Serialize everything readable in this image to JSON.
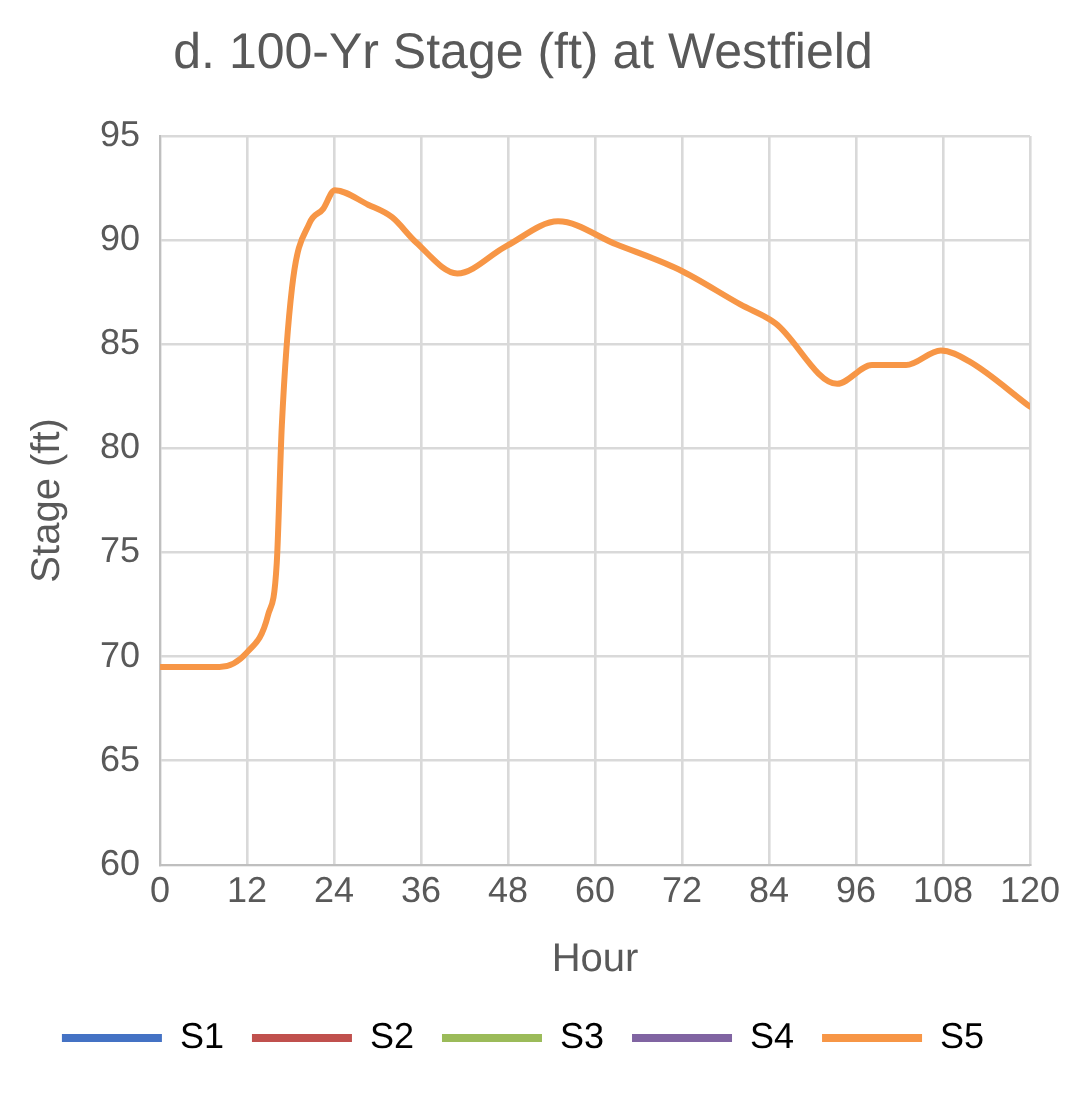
{
  "chart_data": {
    "type": "line",
    "title": "d. 100-Yr Stage (ft) at Westfield",
    "xlabel": "Hour",
    "ylabel": "Stage (ft)",
    "x": [
      0,
      8.2,
      12,
      14.9,
      16.1,
      16.8,
      18.2,
      20.6,
      22.5,
      24.1,
      28.7,
      32,
      35.3,
      41,
      47.7,
      54.9,
      62.9,
      71.5,
      80.1,
      84.9,
      93.4,
      98.2,
      102.9,
      107.7,
      111.5,
      120
    ],
    "series": [
      {
        "name": "S1",
        "color": "#4472c4",
        "values": [
          null,
          null,
          null,
          null,
          null,
          null,
          null,
          null,
          null,
          null,
          null,
          null,
          null,
          null,
          null,
          null,
          null,
          null,
          null,
          null,
          null,
          null,
          null,
          null,
          null,
          null
        ]
      },
      {
        "name": "S2",
        "color": "#c0504d",
        "values": [
          null,
          null,
          null,
          null,
          null,
          null,
          null,
          null,
          null,
          null,
          null,
          null,
          null,
          null,
          null,
          null,
          null,
          null,
          null,
          null,
          null,
          null,
          null,
          null,
          null,
          null
        ]
      },
      {
        "name": "S3",
        "color": "#9bbb59",
        "values": [
          null,
          null,
          null,
          null,
          null,
          null,
          null,
          null,
          null,
          null,
          null,
          null,
          null,
          null,
          null,
          null,
          null,
          null,
          null,
          null,
          null,
          null,
          null,
          null,
          null,
          null
        ]
      },
      {
        "name": "S4",
        "color": "#8064a2",
        "values": [
          null,
          null,
          null,
          null,
          null,
          null,
          null,
          null,
          null,
          null,
          null,
          null,
          null,
          null,
          null,
          null,
          null,
          null,
          null,
          null,
          null,
          null,
          null,
          null,
          null,
          null
        ]
      },
      {
        "name": "S5",
        "color": "#f79646",
        "values": [
          69.5,
          69.5,
          70.2,
          72,
          74.5,
          81.1,
          87.7,
          90.8,
          91.5,
          92.4,
          91.7,
          91.1,
          89.9,
          88.4,
          89.7,
          90.9,
          89.8,
          88.6,
          86.9,
          86,
          83.1,
          84,
          84,
          84.7,
          84.2,
          82
        ]
      }
    ],
    "xlim": [
      0,
      120
    ],
    "xticks": [
      0,
      12,
      24,
      36,
      48,
      60,
      72,
      84,
      96,
      108,
      120
    ],
    "ylim": [
      60,
      95
    ],
    "yticks": [
      60,
      65,
      70,
      75,
      80,
      85,
      90,
      95
    ],
    "grid": true,
    "legend": "bottom",
    "marker": "none",
    "line_style": "solid"
  }
}
